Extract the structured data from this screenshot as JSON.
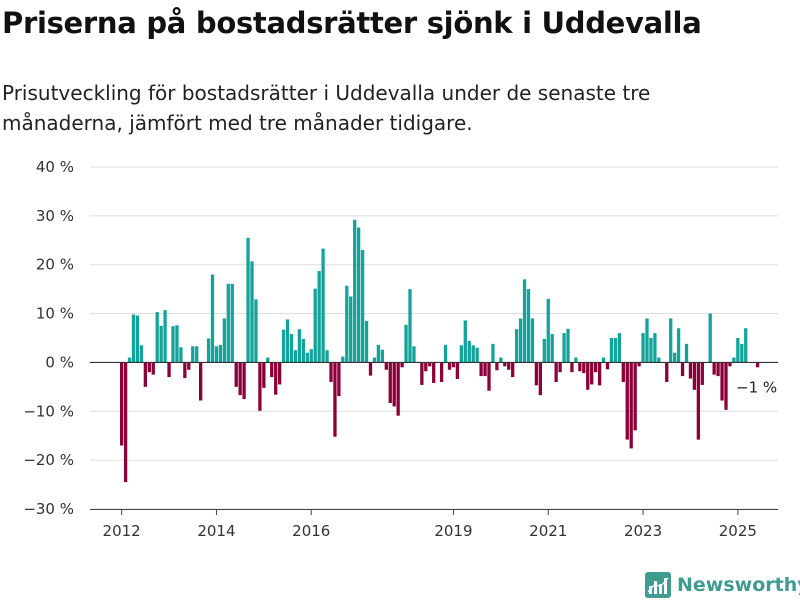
{
  "header": {
    "title": "Priserna på bostadsrätter sjönk i Uddevalla",
    "subtitle": "Prisutveckling för bostadsrätter i Uddevalla under de senaste tre månaderna, jämfört med tre månader tidigare."
  },
  "brand": {
    "name": "Newsworthy",
    "logo_icon": "bar-chart-logo-icon",
    "color": "#3f9c8f"
  },
  "colors": {
    "positive": "#13a39a",
    "negative": "#8c0039",
    "gridline": "#dddddd",
    "zero_line": "#333333"
  },
  "chart_data": {
    "type": "bar",
    "title": "Priserna på bostadsrätter sjönk i Uddevalla",
    "subtitle": "Prisutveckling för bostadsrätter i Uddevalla under de senaste tre månaderna, jämfört med tre månader tidigare.",
    "xlabel": "",
    "ylabel": "",
    "ylim": [
      -30,
      40
    ],
    "y_ticks": [
      -30,
      -20,
      -10,
      0,
      10,
      20,
      30,
      40
    ],
    "y_tick_labels": [
      "−30 %",
      "−20 %",
      "−10 %",
      "0 %",
      "10 %",
      "20 %",
      "30 %",
      "40 %"
    ],
    "x_tick_labels": [
      "2012",
      "2014",
      "2016",
      "2019",
      "2021",
      "2023",
      "2025"
    ],
    "x_tick_years": [
      2012,
      2014,
      2016,
      2019,
      2021,
      2023,
      2025
    ],
    "x_start": "2012-01",
    "x_end": "2025-09",
    "grid": true,
    "annotation": "−1 %",
    "series": [
      {
        "values": [
          -17,
          -24.5,
          1,
          9.8,
          9.6,
          3.5,
          -5,
          -2,
          -2.5,
          10.3,
          7.5,
          10.7,
          -3,
          7.4,
          7.6,
          3.1,
          -3.2,
          -1.5,
          3.3,
          3.3,
          -7.8,
          0,
          4.9,
          18,
          3.3,
          3.6,
          9,
          16.1,
          16.1,
          -5,
          -6.7,
          -7.5,
          25.5,
          20.7,
          12.9,
          -9.9,
          -5.2,
          1,
          -3,
          -6.6,
          -4.5,
          6.7,
          8.8,
          5.8,
          2.5,
          6.8,
          4.8,
          2,
          2.7,
          15.1,
          18.7,
          23.3,
          2.5,
          -4,
          -15.2,
          -6.9,
          1.2,
          15.7,
          13.5,
          29.2,
          27.6,
          23,
          8.5,
          -2.7,
          1,
          3.6,
          2.6,
          -1.5,
          -8.3,
          -9,
          -10.9,
          -1,
          7.7,
          15,
          3.3,
          0,
          -4.6,
          -1.8,
          -0.8,
          -4.2,
          0,
          -4,
          3.6,
          -1.5,
          -1,
          -3.4,
          3.5,
          8.6,
          4.4,
          3.5,
          3,
          -2.8,
          -2.8,
          -5.8,
          3.8,
          -1.6,
          1,
          -0.8,
          -1.5,
          -3,
          6.8,
          9,
          17,
          15,
          9,
          -4.7,
          -6.7,
          4.8,
          13,
          5.8,
          -4,
          -2,
          6,
          6.9,
          -2,
          1,
          -1.8,
          -2.2,
          -5.6,
          -4.5,
          -2,
          -4.7,
          1,
          -1.4,
          5,
          5,
          6,
          -4,
          -15.8,
          -17.6,
          -13.9,
          -0.8,
          6,
          9,
          5,
          6,
          1,
          0,
          -4,
          9,
          2,
          7,
          -2.8,
          3.8,
          -3.3,
          -5.6,
          -15.8,
          -4.6,
          0,
          10,
          -2.5,
          -2.8,
          -7.8,
          -9.7,
          -0.8,
          1,
          5,
          3.8,
          7,
          0,
          0,
          -1
        ]
      }
    ]
  }
}
